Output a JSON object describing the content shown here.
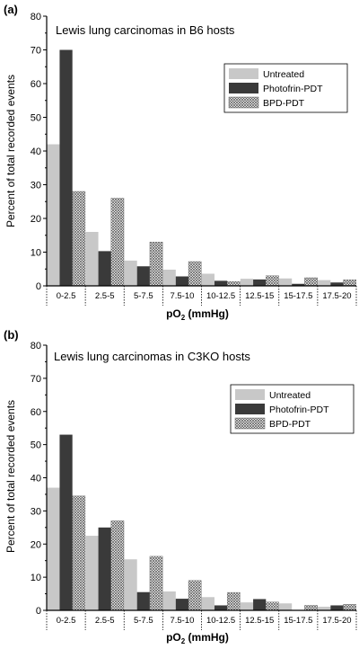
{
  "chart_data": [
    {
      "type": "bar",
      "panel_label": "(a)",
      "title": "Lewis lung carcinomas in B6 hosts",
      "ylabel": "Percent of total recorded events",
      "xlabel_main": "pO",
      "xlabel_sub": "2",
      "xlabel_unit": " (mmHg)",
      "ylim": [
        0,
        80
      ],
      "yticks": [
        "0",
        "10",
        "20",
        "30",
        "40",
        "50",
        "60",
        "70",
        "80"
      ],
      "categories": [
        "0-2.5",
        "2.5-5",
        "5-7.5",
        "7.5-10",
        "10-12.5",
        "12.5-15",
        "15-17.5",
        "17.5-20"
      ],
      "legend_position": "right",
      "series": [
        {
          "name": "Untreated",
          "values": [
            42,
            16,
            7.5,
            4.8,
            3.6,
            2.1,
            2.2,
            1.7
          ]
        },
        {
          "name": "Photofrin-PDT",
          "values": [
            70,
            10.3,
            5.8,
            2.8,
            1.5,
            1.9,
            0.6,
            1.0
          ]
        },
        {
          "name": "BPD-PDT",
          "values": [
            28,
            26,
            13,
            7.2,
            1.3,
            3.0,
            2.4,
            1.8
          ]
        }
      ]
    },
    {
      "type": "bar",
      "panel_label": "(b)",
      "title": "Lewis lung carcinomas in C3KO hosts",
      "ylabel": "Percent of total recorded events",
      "xlabel_main": "pO",
      "xlabel_sub": "2",
      "xlabel_unit": " (mmHg)",
      "ylim": [
        0,
        80
      ],
      "yticks": [
        "0",
        "10",
        "20",
        "30",
        "40",
        "50",
        "60",
        "70",
        "80"
      ],
      "categories": [
        "0-2.5",
        "2.5-5",
        "5-7.5",
        "7.5-10",
        "10-12.5",
        "12.5-15",
        "15-17.5",
        "17.5-20"
      ],
      "legend_position": "right",
      "series": [
        {
          "name": "Untreated",
          "values": [
            37,
            22.5,
            15.4,
            5.7,
            4.0,
            2.4,
            2.1,
            1.1
          ]
        },
        {
          "name": "Photofrin-PDT",
          "values": [
            53,
            25,
            5.5,
            3.5,
            1.5,
            3.4,
            0.0,
            1.5
          ]
        },
        {
          "name": "BPD-PDT",
          "values": [
            34.5,
            27,
            16.3,
            9.0,
            5.4,
            2.5,
            1.5,
            1.8
          ]
        }
      ]
    }
  ],
  "colors": {
    "untreated": "#c8c8c8",
    "photofrin": "#3a3a3a",
    "bpd_fill": "#ffffff",
    "bpd_hatch": "#555555",
    "axis": "#000000"
  }
}
